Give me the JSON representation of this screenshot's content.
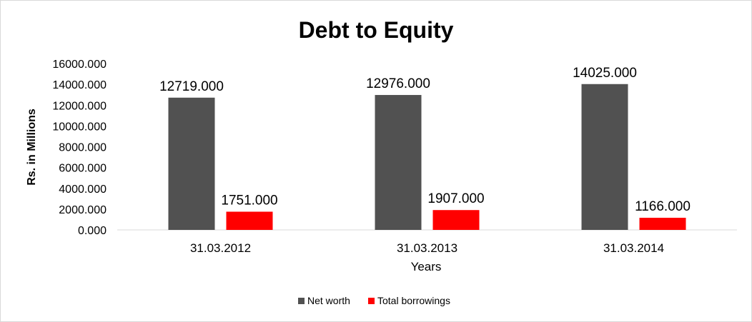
{
  "chart_data": {
    "type": "bar",
    "title": "Debt to Equity",
    "xlabel": "Years",
    "ylabel": "Rs. in Millions",
    "categories": [
      "31.03.2012",
      "31.03.2013",
      "31.03.2014"
    ],
    "series": [
      {
        "name": "Net worth",
        "color": "#515151",
        "values": [
          12719,
          12976,
          14025
        ],
        "labels": [
          "12719.000",
          "12976.000",
          "14025.000"
        ]
      },
      {
        "name": "Total borrowings",
        "color": "#ff0000",
        "values": [
          1751,
          1907,
          1166
        ],
        "labels": [
          "1751.000",
          "1907.000",
          "1166.000"
        ]
      }
    ],
    "ylim": [
      0,
      16000
    ],
    "yticks": [
      0,
      2000,
      4000,
      6000,
      8000,
      10000,
      12000,
      14000,
      16000
    ],
    "ytick_labels": [
      "0.000",
      "2000.000",
      "4000.000",
      "6000.000",
      "8000.000",
      "10000.000",
      "12000.000",
      "14000.000",
      "16000.000"
    ],
    "grid": false,
    "legend_position": "bottom"
  }
}
